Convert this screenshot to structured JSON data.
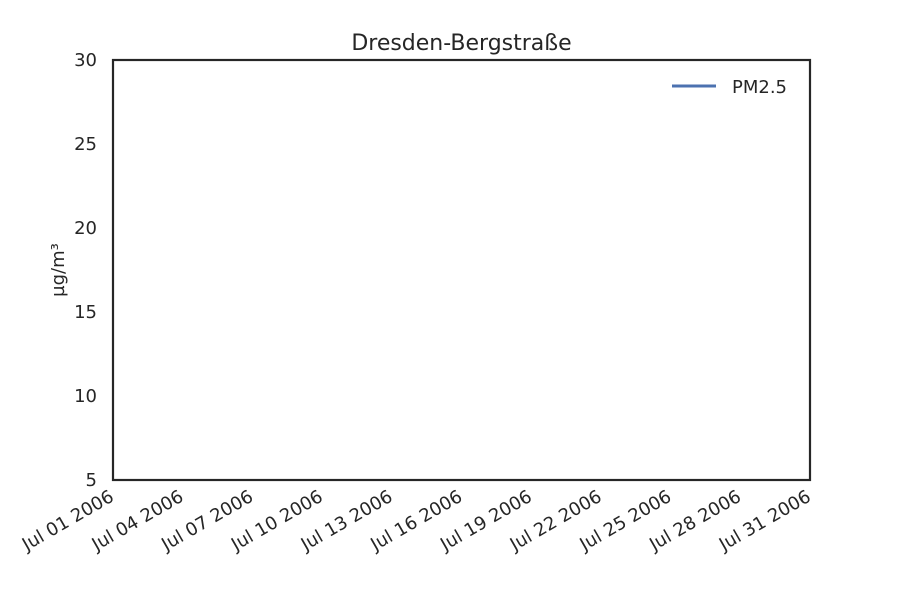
{
  "chart_data": {
    "type": "line",
    "title": "Dresden-Bergstraße",
    "xlabel": "",
    "ylabel": "µg/m³",
    "x_tick_labels": [
      "Jul 01 2006",
      "Jul 04 2006",
      "Jul 07 2006",
      "Jul 10 2006",
      "Jul 13 2006",
      "Jul 16 2006",
      "Jul 19 2006",
      "Jul 22 2006",
      "Jul 25 2006",
      "Jul 28 2006",
      "Jul 31 2006"
    ],
    "xlim": [
      "2006-07-01",
      "2006-07-31"
    ],
    "y_ticks": [
      5,
      10,
      15,
      20,
      25,
      30
    ],
    "ylim": [
      5,
      30
    ],
    "grid": false,
    "legend": {
      "placement": "top-right"
    },
    "series": [
      {
        "name": "PM2.5",
        "color": "#4c72b0",
        "x": [],
        "values": []
      }
    ]
  }
}
